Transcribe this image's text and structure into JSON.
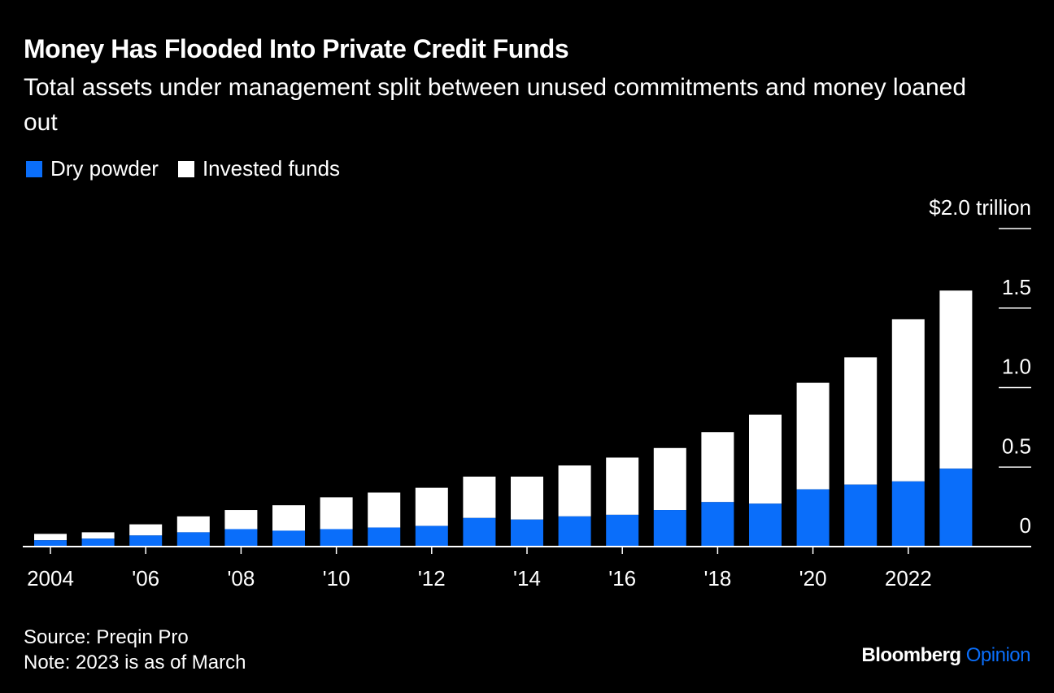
{
  "header": {
    "title": "Money Has Flooded Into Private Credit Funds",
    "subtitle": "Total assets under management split between unused commitments and money loaned out"
  },
  "colors": {
    "background": "#000000",
    "dry_powder": "#0A6EFA",
    "invested": "#FFFFFF"
  },
  "footer": {
    "source": "Source: Preqin Pro",
    "note": "Note: 2023 is as of March",
    "brand_name": "Bloomberg",
    "brand_section": "Opinion"
  },
  "chart_data": {
    "type": "bar",
    "stacked": true,
    "categories": [
      "2004",
      "2005",
      "2006",
      "2007",
      "2008",
      "2009",
      "2010",
      "2011",
      "2012",
      "2013",
      "2014",
      "2015",
      "2016",
      "2017",
      "2018",
      "2019",
      "2020",
      "2021",
      "2022",
      "2023"
    ],
    "series": [
      {
        "name": "Dry powder",
        "color": "#0A6EFA",
        "values": [
          0.04,
          0.05,
          0.07,
          0.09,
          0.11,
          0.1,
          0.11,
          0.12,
          0.13,
          0.18,
          0.17,
          0.19,
          0.2,
          0.23,
          0.28,
          0.27,
          0.36,
          0.39,
          0.41,
          0.49
        ]
      },
      {
        "name": "Invested funds",
        "color": "#FFFFFF",
        "values": [
          0.04,
          0.04,
          0.07,
          0.1,
          0.12,
          0.16,
          0.2,
          0.22,
          0.24,
          0.26,
          0.27,
          0.32,
          0.36,
          0.39,
          0.44,
          0.56,
          0.67,
          0.8,
          1.02,
          1.12
        ]
      }
    ],
    "y_ticks": [
      {
        "value": 0,
        "label": "0"
      },
      {
        "value": 0.5,
        "label": "0.5"
      },
      {
        "value": 1.0,
        "label": "1.0"
      },
      {
        "value": 1.5,
        "label": "1.5"
      },
      {
        "value": 2.0,
        "label": "$2.0 trillion"
      }
    ],
    "x_ticks": [
      {
        "index": 0,
        "label": "2004"
      },
      {
        "index": 2,
        "label": "'06"
      },
      {
        "index": 4,
        "label": "'08"
      },
      {
        "index": 6,
        "label": "'10"
      },
      {
        "index": 8,
        "label": "'12"
      },
      {
        "index": 10,
        "label": "'14"
      },
      {
        "index": 12,
        "label": "'16"
      },
      {
        "index": 14,
        "label": "'18"
      },
      {
        "index": 16,
        "label": "'20"
      },
      {
        "index": 18,
        "label": "2022"
      }
    ],
    "ylim": [
      0,
      2.0
    ],
    "legend_position": "top-left",
    "grid": false
  }
}
